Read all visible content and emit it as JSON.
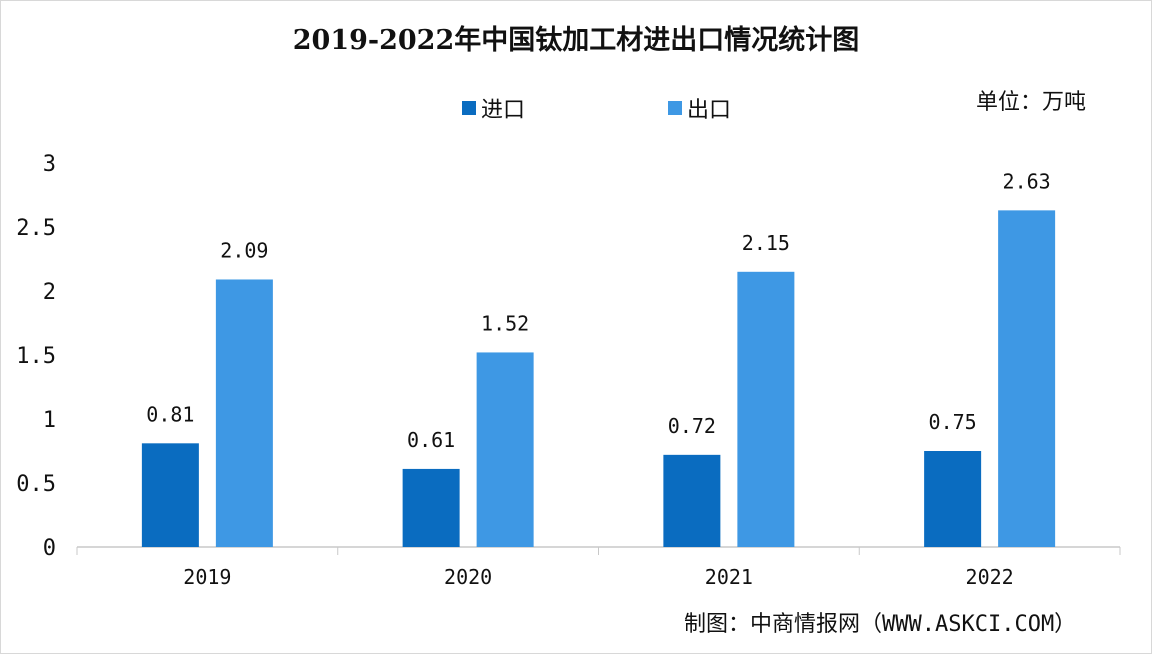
{
  "chart_data": {
    "type": "bar",
    "title": "2019-2022年中国钛加工材进出口情况统计图",
    "unit_label": "单位：万吨",
    "categories": [
      "2019",
      "2020",
      "2021",
      "2022"
    ],
    "series": [
      {
        "name": "进口",
        "values": [
          0.81,
          0.61,
          0.72,
          0.75
        ],
        "color": "#0a6cc0",
        "labels": [
          "0.81",
          "0.61",
          "0.72",
          "0.75"
        ]
      },
      {
        "name": "出口",
        "values": [
          2.09,
          1.52,
          2.15,
          2.63
        ],
        "color": "#3e98e4",
        "labels": [
          "2.09",
          "1.52",
          "2.15",
          "2.63"
        ]
      }
    ],
    "yticks": [
      "0",
      "0.5",
      "1",
      "1.5",
      "2",
      "2.5",
      "3"
    ],
    "ylim": [
      0,
      3
    ],
    "grid": false,
    "legend_position": "top-center",
    "xlabel": "",
    "ylabel": ""
  },
  "source": "制图：中商情报网（WWW.ASKCI.COM）"
}
